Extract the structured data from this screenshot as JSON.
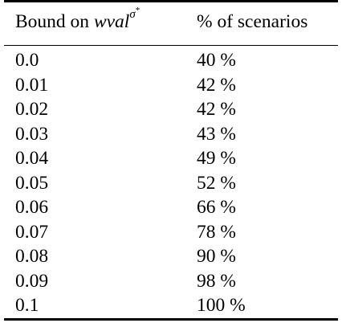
{
  "table": {
    "header": {
      "col1_prefix": "Bound on ",
      "col1_var": "wval",
      "col1_sup": "σ",
      "col1_sup_star": "*",
      "col2": "% of scenarios"
    },
    "rows": [
      {
        "bound": "0.0",
        "percent": "40 %"
      },
      {
        "bound": "0.01",
        "percent": "42 %"
      },
      {
        "bound": "0.02",
        "percent": "42 %"
      },
      {
        "bound": "0.03",
        "percent": "43 %"
      },
      {
        "bound": "0.04",
        "percent": "49 %"
      },
      {
        "bound": "0.05",
        "percent": "52 %"
      },
      {
        "bound": "0.06",
        "percent": "66 %"
      },
      {
        "bound": "0.07",
        "percent": "78 %"
      },
      {
        "bound": "0.08",
        "percent": "90 %"
      },
      {
        "bound": "0.09",
        "percent": "98 %"
      },
      {
        "bound": "0.1",
        "percent": "100 %"
      }
    ]
  }
}
